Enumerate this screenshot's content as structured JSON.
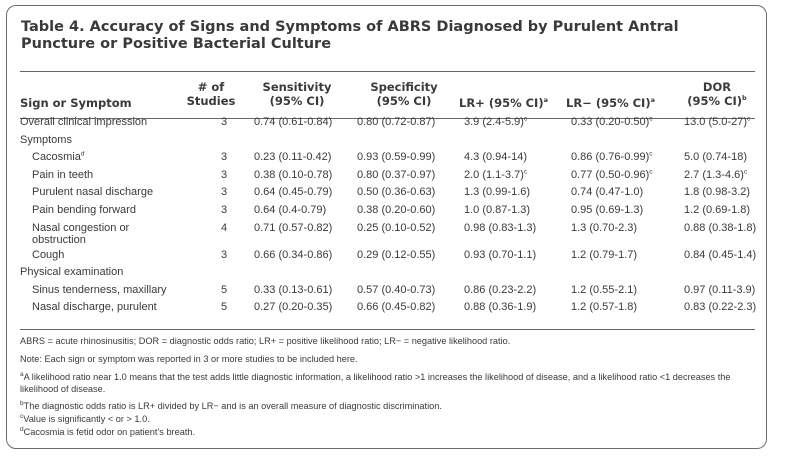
{
  "title": "Table 4. Accuracy of Signs and Symptoms of ABRS Diagnosed by Purulent Antral Puncture or Positive Bacterial Culture",
  "headers": {
    "sign": "Sign or Symptom",
    "studies_line1": "# of",
    "studies_line2": "Studies",
    "sens_line1": "Sensitivity",
    "sens_line2": "(95% CI)",
    "spec_line1": "Specificity",
    "spec_line2": "(95% CI)",
    "lrpos": "LR+ (95% CI)",
    "lrpos_sup": "a",
    "lrneg": "LR− (95% CI)",
    "lrneg_sup": "a",
    "dor_line1": "DOR",
    "dor_line2": "(95% CI)",
    "dor_sup": "b"
  },
  "rows": [
    {
      "sign": "Overall clinical impression",
      "sign_sup": "",
      "studies": "3",
      "sens": "0.74 (0.61-0.84)",
      "spec": "0.80 (0.72-0.87)",
      "lrpos": "3.9 (2.4-5.9)",
      "lrpos_sup": "c",
      "lrneg": "0.33 (0.20-0.50)",
      "lrneg_sup": "c",
      "dor": "13.0 (5.0-27)",
      "dor_sup": "c"
    },
    {
      "sign": "Symptoms",
      "sign_sup": "",
      "studies": "",
      "sens": "",
      "spec": "",
      "lrpos": "",
      "lrpos_sup": "",
      "lrneg": "",
      "lrneg_sup": "",
      "dor": "",
      "dor_sup": ""
    },
    {
      "sign": "Cacosmia",
      "sign_sup": "d",
      "studies": "3",
      "sens": "0.23 (0.11-0.42)",
      "spec": "0.93 (0.59-0.99)",
      "lrpos": "4.3 (0.94-14)",
      "lrpos_sup": "",
      "lrneg": "0.86 (0.76-0.99)",
      "lrneg_sup": "c",
      "dor": "5.0 (0.74-18)",
      "dor_sup": ""
    },
    {
      "sign": "Pain in teeth",
      "sign_sup": "",
      "studies": "3",
      "sens": "0.38 (0.10-0.78)",
      "spec": "0.80 (0.37-0.97)",
      "lrpos": "2.0 (1.1-3.7)",
      "lrpos_sup": "c",
      "lrneg": "0.77 (0.50-0.96)",
      "lrneg_sup": "c",
      "dor": "2.7 (1.3-4.6)",
      "dor_sup": "c"
    },
    {
      "sign": "Purulent nasal discharge",
      "sign_sup": "",
      "studies": "3",
      "sens": "0.64 (0.45-0.79)",
      "spec": "0.50 (0.36-0.63)",
      "lrpos": "1.3 (0.99-1.6)",
      "lrpos_sup": "",
      "lrneg": "0.74 (0.47-1.0)",
      "lrneg_sup": "",
      "dor": "1.8 (0.98-3.2)",
      "dor_sup": ""
    },
    {
      "sign": "Pain bending forward",
      "sign_sup": "",
      "studies": "3",
      "sens": "0.64 (0.4-0.79)",
      "spec": "0.38 (0.20-0.60)",
      "lrpos": "1.0 (0.87-1.3)",
      "lrpos_sup": "",
      "lrneg": "0.95 (0.69-1.3)",
      "lrneg_sup": "",
      "dor": "1.2 (0.69-1.8)",
      "dor_sup": ""
    },
    {
      "sign": "Nasal congestion or obstruction",
      "sign_sup": "",
      "studies": "4",
      "sens": "0.71 (0.57-0.82)",
      "spec": "0.25 (0.10-0.52)",
      "lrpos": "0.98 (0.83-1.3)",
      "lrpos_sup": "",
      "lrneg": "1.3 (0.70-2.3)",
      "lrneg_sup": "",
      "dor": "0.88 (0.38-1.8)",
      "dor_sup": ""
    },
    {
      "sign": "Cough",
      "sign_sup": "",
      "studies": "3",
      "sens": "0.66 (0.34-0.86)",
      "spec": "0.29 (0.12-0.55)",
      "lrpos": "0.93 (0.70-1.1)",
      "lrpos_sup": "",
      "lrneg": "1.2 (0.79-1.7)",
      "lrneg_sup": "",
      "dor": "0.84 (0.45-1.4)",
      "dor_sup": ""
    },
    {
      "sign": "Physical examination",
      "sign_sup": "",
      "studies": "",
      "sens": "",
      "spec": "",
      "lrpos": "",
      "lrpos_sup": "",
      "lrneg": "",
      "lrneg_sup": "",
      "dor": "",
      "dor_sup": ""
    },
    {
      "sign": "Sinus tenderness, maxillary",
      "sign_sup": "",
      "studies": "5",
      "sens": "0.33 (0.13-0.61)",
      "spec": "0.57 (0.40-0.73)",
      "lrpos": "0.86 (0.23-2.2)",
      "lrpos_sup": "",
      "lrneg": "1.2 (0.55-2.1)",
      "lrneg_sup": "",
      "dor": "0.97 (0.11-3.9)",
      "dor_sup": ""
    },
    {
      "sign": "Nasal discharge, purulent",
      "sign_sup": "",
      "studies": "5",
      "sens": "0.27 (0.20-0.35)",
      "spec": "0.66 (0.45-0.82)",
      "lrpos": "0.88 (0.36-1.9)",
      "lrpos_sup": "",
      "lrneg": "1.2 (0.57-1.8)",
      "lrneg_sup": "",
      "dor": "0.83 (0.22-2.3)",
      "dor_sup": ""
    }
  ],
  "footnotes": {
    "abbrev": "ABRS = acute rhinosinusitis; DOR = diagnostic odds ratio; LR+ = positive likelihood ratio; LR− = negative likelihood ratio.",
    "note": "Note: Each sign or symptom was reported in 3 or more studies to be included here.",
    "a_mark": "a",
    "a_text": "A likelihood ratio near 1.0 means that the test adds little diagnostic information, a likelihood ratio >1 increases the likelihood of disease, and a likelihood ratio <1 decreases the likelihood of disease.",
    "b_mark": "b",
    "b_text": "The diagnostic odds ratio is LR+ divided by LR− and is an overall measure of diagnostic discrimination.",
    "c_mark": "c",
    "c_text": "Value is significantly < or > 1.0.",
    "d_mark": "d",
    "d_text": "Cacosmia is fetid odor on patient’s breath."
  }
}
